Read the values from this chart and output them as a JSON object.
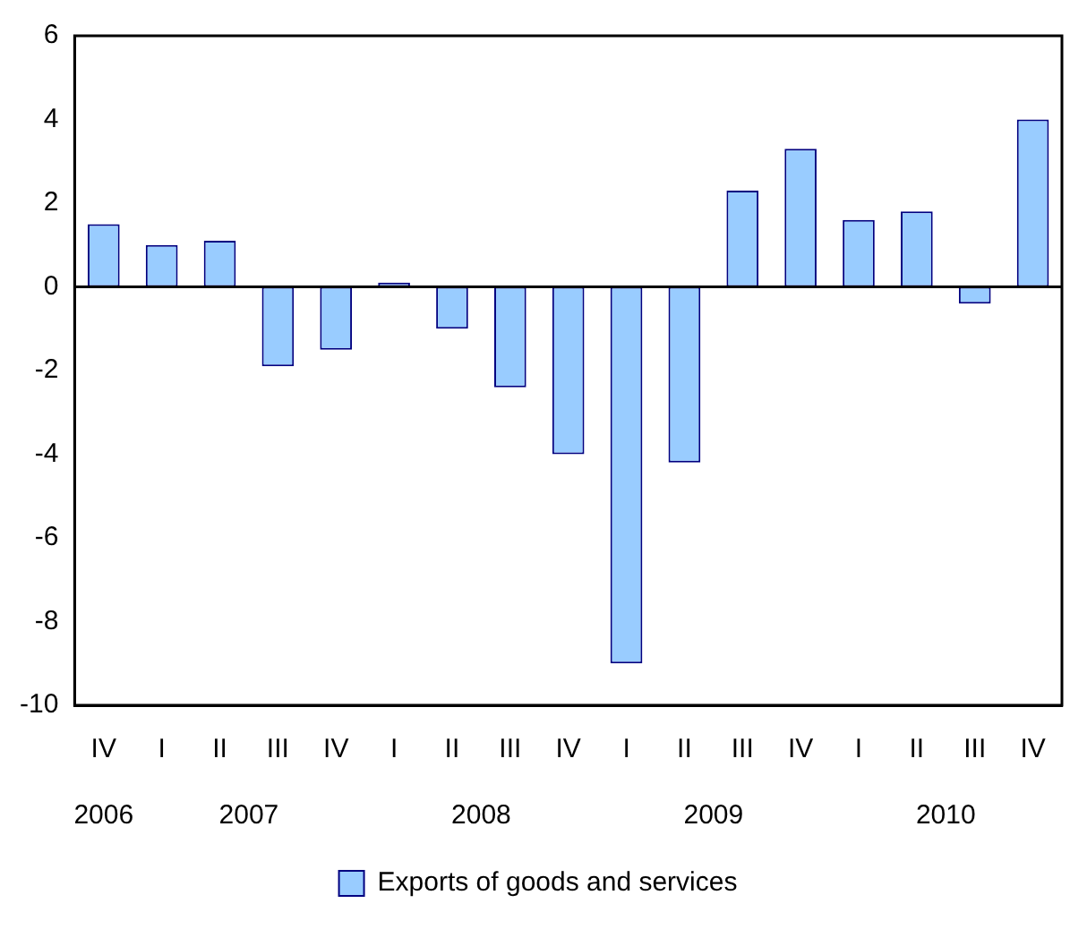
{
  "chart_data": {
    "type": "bar",
    "categories": [
      "IV",
      "I",
      "II",
      "III",
      "IV",
      "I",
      "II",
      "III",
      "IV",
      "I",
      "II",
      "III",
      "IV",
      "I",
      "II",
      "III",
      "IV"
    ],
    "series": [
      {
        "name": "Exports of goods and services",
        "color": "#99ccff",
        "values": [
          1.5,
          1.0,
          1.1,
          -1.9,
          -1.5,
          0.1,
          -1.0,
          -2.4,
          -4.0,
          -9.0,
          -4.2,
          2.3,
          3.3,
          1.6,
          1.8,
          -0.4,
          4.0
        ]
      }
    ],
    "ylim": [
      -10,
      6
    ],
    "yticks": [
      -10,
      -8,
      -6,
      -4,
      -2,
      0,
      2,
      4,
      6
    ],
    "annotations": [
      "2006",
      "2007",
      "2008",
      "2009",
      "2010"
    ],
    "ref_lines": [
      {
        "axis": "y",
        "value": 0,
        "color": "#000000"
      }
    ],
    "grid": false,
    "legend": "bottom"
  }
}
